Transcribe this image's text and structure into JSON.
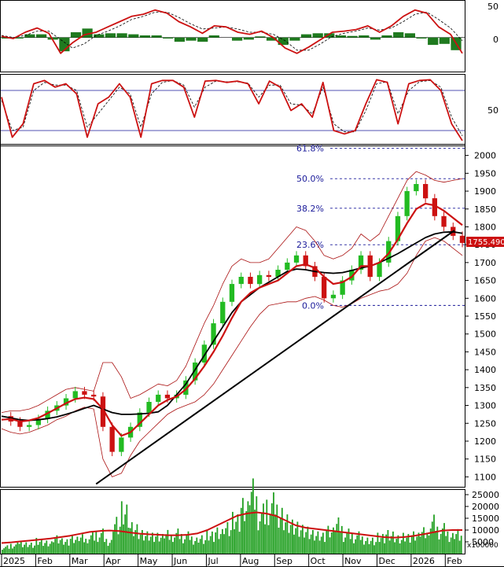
{
  "colors": {
    "up_candle": "#22bb22",
    "down_candle": "#cc1111",
    "ma_fast": "#cc1111",
    "ma_slow": "#000000",
    "bollinger": "#aa1111",
    "macd_hist": "#1f7a1f",
    "fib_line": "#1a1a9a",
    "volume": "#22a022",
    "volume_ma": "#cc1111",
    "price_tag_bg": "#cc1111",
    "grid": "#000000"
  },
  "x_axis": {
    "labels": [
      "2025",
      "Feb",
      "Mar",
      "Apr",
      "May",
      "Jun",
      "Jul",
      "Aug",
      "Sep",
      "Oct",
      "Nov",
      "Dec",
      "2026",
      "Feb"
    ]
  },
  "panels": {
    "macd": {
      "ticks": [
        "50",
        "0"
      ]
    },
    "stochastic": {
      "ticks": [
        "50"
      ]
    },
    "price": {
      "ticks": [
        "2000",
        "1950",
        "1900",
        "1850",
        "1800",
        "1750",
        "1700",
        "1650",
        "1600",
        "1550",
        "1500",
        "1450",
        "1400",
        "1350",
        "1300",
        "1250",
        "1200",
        "1150",
        "1100"
      ],
      "last_price_label": "1755.490"
    },
    "volume": {
      "ticks": [
        "25000",
        "20000",
        "15000",
        "10000",
        "5000"
      ],
      "multiplier_label": "x100000"
    }
  },
  "chart_data": [
    {
      "type": "line",
      "panel": "macd",
      "ylim": [
        -60,
        65
      ],
      "months": [
        "Jan 2025",
        "Feb",
        "Mar",
        "Apr",
        "May",
        "Jun",
        "Jul",
        "Aug",
        "Sep",
        "Oct",
        "Nov",
        "Dec",
        "Jan 2026",
        "Feb"
      ],
      "series": [
        {
          "role": "macd",
          "values": [
            2,
            -2,
            10,
            18,
            8,
            -30,
            -10,
            5,
            10,
            20,
            30,
            40,
            44,
            52,
            46,
            30,
            20,
            8,
            22,
            20,
            10,
            6,
            12,
            0,
            -20,
            -30,
            -18,
            -4,
            10,
            12,
            15,
            22,
            10,
            22,
            40,
            52,
            46,
            20,
            6,
            -30
          ]
        },
        {
          "role": "signal",
          "values": [
            4,
            0,
            4,
            12,
            12,
            -4,
            -20,
            -12,
            4,
            12,
            22,
            34,
            40,
            48,
            48,
            38,
            26,
            16,
            18,
            20,
            16,
            10,
            10,
            6,
            -6,
            -24,
            -24,
            -12,
            2,
            8,
            12,
            18,
            14,
            18,
            30,
            44,
            48,
            34,
            18,
            -6
          ]
        },
        {
          "role": "histogram",
          "values": [
            -2,
            -2,
            6,
            6,
            -4,
            -26,
            10,
            17,
            6,
            8,
            8,
            6,
            4,
            4,
            -2,
            -8,
            -6,
            -8,
            4,
            0,
            -6,
            -4,
            2,
            -6,
            -14,
            -6,
            6,
            8,
            8,
            4,
            3,
            4,
            -4,
            4,
            10,
            8,
            -2,
            -14,
            -12,
            -24
          ]
        }
      ]
    },
    {
      "type": "line",
      "panel": "stochastic",
      "ylim": [
        0,
        100
      ],
      "levels": [
        20,
        80
      ],
      "series": [
        {
          "role": "%K",
          "values": [
            70,
            10,
            30,
            90,
            95,
            85,
            90,
            75,
            10,
            60,
            70,
            90,
            70,
            10,
            90,
            95,
            95,
            85,
            40,
            94,
            95,
            92,
            94,
            90,
            60,
            94,
            85,
            50,
            60,
            40,
            92,
            20,
            15,
            20,
            60,
            96,
            92,
            30,
            90,
            95,
            96,
            80,
            30,
            5
          ]
        },
        {
          "role": "%D",
          "values": [
            65,
            20,
            25,
            80,
            92,
            88,
            88,
            80,
            25,
            45,
            65,
            85,
            75,
            25,
            75,
            92,
            95,
            88,
            55,
            85,
            94,
            93,
            93,
            91,
            70,
            88,
            88,
            60,
            58,
            45,
            85,
            30,
            18,
            18,
            50,
            90,
            93,
            45,
            80,
            93,
            95,
            85,
            40,
            12
          ]
        }
      ]
    },
    {
      "type": "line",
      "panel": "price",
      "ylim": [
        1070,
        2030
      ],
      "fibonacci": [
        {
          "label": "61.8%",
          "value": 2020
        },
        {
          "label": "50.0%",
          "value": 1935
        },
        {
          "label": "38.2%",
          "value": 1852
        },
        {
          "label": "23.6%",
          "value": 1750
        },
        {
          "label": "0.0%",
          "value": 1580
        }
      ],
      "trendline": {
        "from": [
          "Apr 2025",
          1080
        ],
        "to": [
          "Feb 2026",
          1790
        ]
      },
      "series": [
        {
          "role": "close",
          "values": [
            1270,
            1255,
            1240,
            1245,
            1262,
            1285,
            1300,
            1320,
            1340,
            1330,
            1325,
            1240,
            1170,
            1210,
            1240,
            1280,
            1310,
            1330,
            1320,
            1330,
            1370,
            1420,
            1470,
            1530,
            1590,
            1640,
            1660,
            1640,
            1665,
            1660,
            1680,
            1700,
            1720,
            1690,
            1660,
            1600,
            1610,
            1650,
            1680,
            1720,
            1660,
            1700,
            1760,
            1830,
            1900,
            1920,
            1880,
            1830,
            1800,
            1775,
            1755
          ]
        },
        {
          "role": "ma_fast",
          "values": [
            1260,
            1262,
            1255,
            1258,
            1265,
            1278,
            1292,
            1306,
            1318,
            1322,
            1318,
            1290,
            1245,
            1215,
            1225,
            1250,
            1275,
            1300,
            1315,
            1325,
            1345,
            1375,
            1410,
            1450,
            1495,
            1545,
            1590,
            1615,
            1630,
            1640,
            1650,
            1670,
            1690,
            1695,
            1685,
            1660,
            1640,
            1645,
            1660,
            1690,
            1690,
            1700,
            1725,
            1765,
            1810,
            1850,
            1865,
            1860,
            1845,
            1825,
            1805
          ]
        },
        {
          "role": "ma_slow",
          "values": [
            1270,
            1265,
            1260,
            1258,
            1260,
            1263,
            1268,
            1275,
            1283,
            1292,
            1300,
            1290,
            1280,
            1275,
            1275,
            1276,
            1278,
            1282,
            1300,
            1330,
            1360,
            1400,
            1440,
            1480,
            1520,
            1560,
            1590,
            1610,
            1630,
            1645,
            1660,
            1675,
            1682,
            1680,
            1675,
            1672,
            1670,
            1672,
            1678,
            1685,
            1690,
            1700,
            1712,
            1725,
            1740,
            1755,
            1770,
            1780,
            1785,
            1786,
            1782
          ]
        },
        {
          "role": "bollinger_upper",
          "values": [
            1280,
            1285,
            1285,
            1290,
            1300,
            1315,
            1330,
            1345,
            1350,
            1345,
            1340,
            1420,
            1420,
            1380,
            1320,
            1330,
            1345,
            1360,
            1355,
            1370,
            1410,
            1470,
            1530,
            1580,
            1640,
            1690,
            1710,
            1700,
            1700,
            1710,
            1740,
            1770,
            1800,
            1790,
            1760,
            1720,
            1710,
            1720,
            1740,
            1780,
            1760,
            1780,
            1830,
            1880,
            1930,
            1955,
            1945,
            1930,
            1925,
            1930,
            1935
          ]
        },
        {
          "role": "bollinger_lower",
          "values": [
            1235,
            1225,
            1220,
            1225,
            1235,
            1245,
            1260,
            1270,
            1285,
            1295,
            1290,
            1150,
            1100,
            1110,
            1160,
            1200,
            1225,
            1250,
            1275,
            1290,
            1300,
            1310,
            1330,
            1360,
            1400,
            1440,
            1480,
            1520,
            1555,
            1580,
            1585,
            1590,
            1590,
            1600,
            1605,
            1595,
            1580,
            1575,
            1585,
            1600,
            1610,
            1620,
            1625,
            1640,
            1670,
            1720,
            1760,
            1770,
            1760,
            1740,
            1720
          ]
        }
      ]
    },
    {
      "type": "bar",
      "panel": "volume",
      "ylim": [
        0,
        27000
      ],
      "series": [
        {
          "role": "volume",
          "values": [
            3000,
            4000,
            5000,
            4500,
            6000,
            5000,
            7000,
            5500,
            6500,
            7000,
            8000,
            9000,
            6000,
            15000,
            20000,
            12000,
            9000,
            8000,
            7500,
            8500,
            9000,
            8000,
            7000,
            7500,
            9000,
            10000,
            12000,
            15000,
            20000,
            27000,
            18000,
            22000,
            20000,
            16000,
            13000,
            11000,
            9000,
            8000,
            10000,
            13000,
            9000,
            8000,
            7000,
            6500,
            8000,
            9000,
            7000,
            7500,
            8000,
            9500,
            14000,
            11000,
            9000,
            10000
          ]
        },
        {
          "role": "volume_ma",
          "values": [
            4500,
            4800,
            5200,
            5600,
            6000,
            6400,
            7000,
            7600,
            8400,
            9200,
            9600,
            9800,
            9600,
            9000,
            8500,
            8200,
            8000,
            7800,
            7800,
            8000,
            8600,
            10000,
            12000,
            14000,
            16000,
            17000,
            17500,
            17000,
            16000,
            14000,
            12000,
            11000,
            10500,
            10000,
            9500,
            9000,
            8500,
            8000,
            7500,
            7000,
            6800,
            7000,
            7500,
            8200,
            9000,
            9800,
            10000,
            10000
          ]
        }
      ]
    }
  ]
}
